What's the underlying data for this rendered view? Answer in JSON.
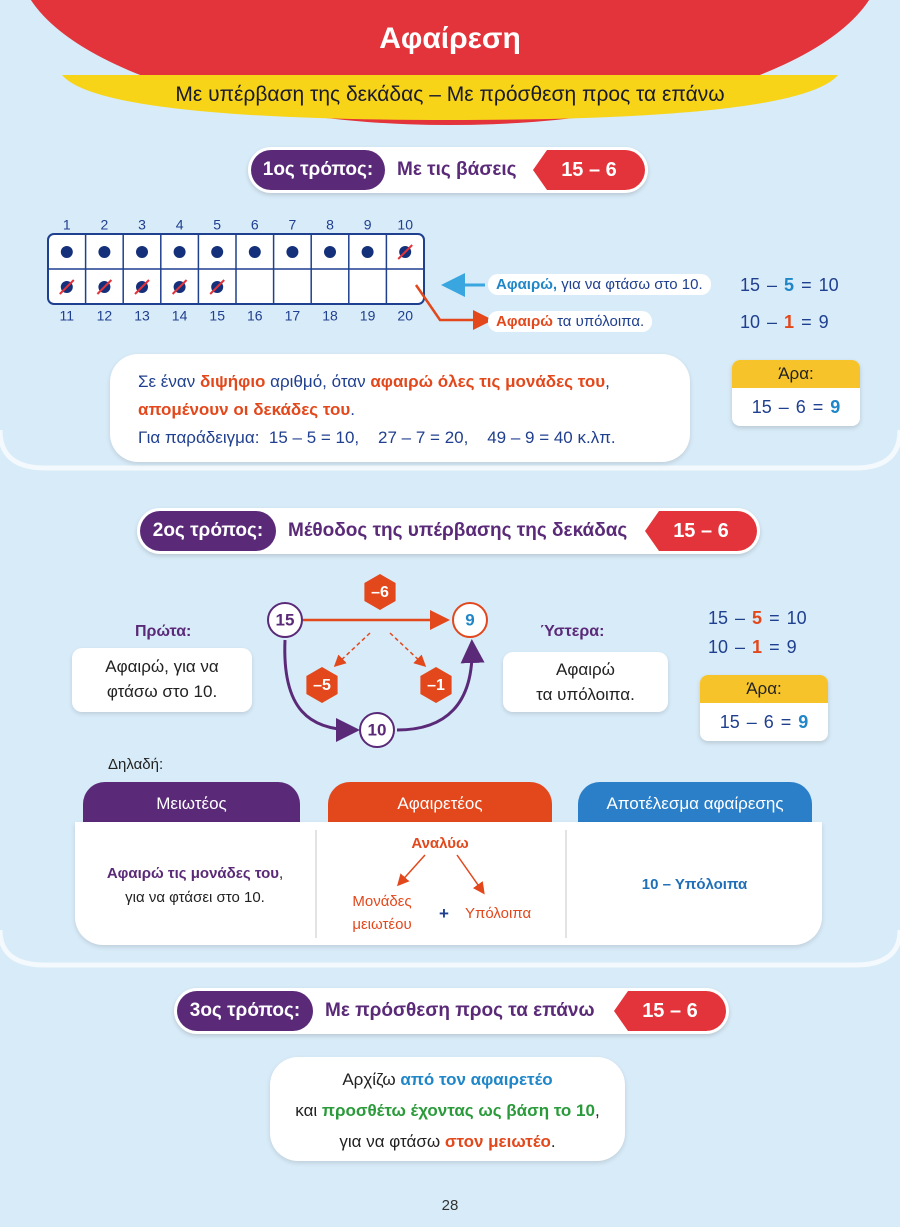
{
  "header": {
    "title": "Αφαίρεση",
    "subtitle": "Με υπέρβαση της δεκάδας – Με πρόσθεση προς τα επάνω"
  },
  "method1": {
    "label": "1ος τρόπος:",
    "name": "Με τις βάσεις",
    "problem": "15 – 6",
    "grid": {
      "top": [
        1,
        2,
        3,
        4,
        5,
        6,
        7,
        8,
        9,
        10
      ],
      "bottom": [
        11,
        12,
        13,
        14,
        15,
        16,
        17,
        18,
        19,
        20
      ]
    },
    "notes": [
      [
        "Αφαιρώ,",
        " για να φτάσω στο 10."
      ],
      [
        "Αφαιρώ",
        " τα υπόλοιπα."
      ]
    ],
    "equations": [
      [
        15,
        "–",
        5,
        "=",
        10
      ],
      [
        10,
        "–",
        1,
        "=",
        9
      ]
    ],
    "result": {
      "label": "Άρα:",
      "equation": [
        15,
        "–",
        6,
        "=",
        9
      ]
    },
    "rule": [
      [
        "Σε έναν ",
        "διψήφιο",
        " αριθμό, όταν ",
        "αφαιρώ όλες τις μονάδες του",
        ","
      ],
      [
        "απομένουν οι δεκάδες του",
        "."
      ],
      [
        "Για παράδειγμα:  15 – 5 = 10,    27 – 7 = 20,    49 – 9 = 40 κ.λπ."
      ]
    ]
  },
  "method2": {
    "label": "2ος τρόπος:",
    "name": "Μέθοδος της υπέρβασης της δεκάδας",
    "problem": "15 – 6",
    "diagram": {
      "start": 15,
      "end": 9,
      "middle": 10,
      "total_step": "–6",
      "first_step": "–5",
      "second_step": "–1"
    },
    "first": {
      "label": "Πρώτα:",
      "text": [
        "Αφαιρώ, για να",
        "φτάσω στο 10."
      ]
    },
    "then": {
      "label": "Ύστερα:",
      "text": [
        "Αφαιρώ",
        "τα υπόλοιπα."
      ]
    },
    "equations": [
      [
        15,
        "–",
        5,
        "=",
        10
      ],
      [
        10,
        "–",
        1,
        "=",
        9
      ]
    ],
    "result": {
      "label": "Άρα:",
      "equation": [
        15,
        "–",
        6,
        "=",
        9
      ]
    },
    "that_is": "Δηλαδή:",
    "table": {
      "headers": [
        "Μειωτέος",
        "Αφαιρετέος",
        "Αποτέλεσμα αφαίρεσης"
      ],
      "minuend": [
        [
          "Αφαιρώ τις μονάδες του",
          ","
        ],
        [
          "για να φτάσει στο 10."
        ]
      ],
      "subtrahend": {
        "title": "Αναλύω",
        "units": [
          "Μονάδες",
          "μειωτέου"
        ],
        "plus": "+",
        "rest": "Υπόλοιπα"
      },
      "result": "10 – Υπόλοιπα"
    }
  },
  "method3": {
    "label": "3ος τρόπος:",
    "name": "Με πρόσθεση προς τα επάνω",
    "problem": "15 – 6",
    "text": [
      [
        "Αρχίζω ",
        "από τον αφαιρετέο"
      ],
      [
        "και ",
        "προσθέτω έχοντας ως βάση το 10",
        ","
      ],
      [
        "για να φτάσω ",
        "στον μειωτέο",
        "."
      ]
    ]
  },
  "page_number": 28
}
